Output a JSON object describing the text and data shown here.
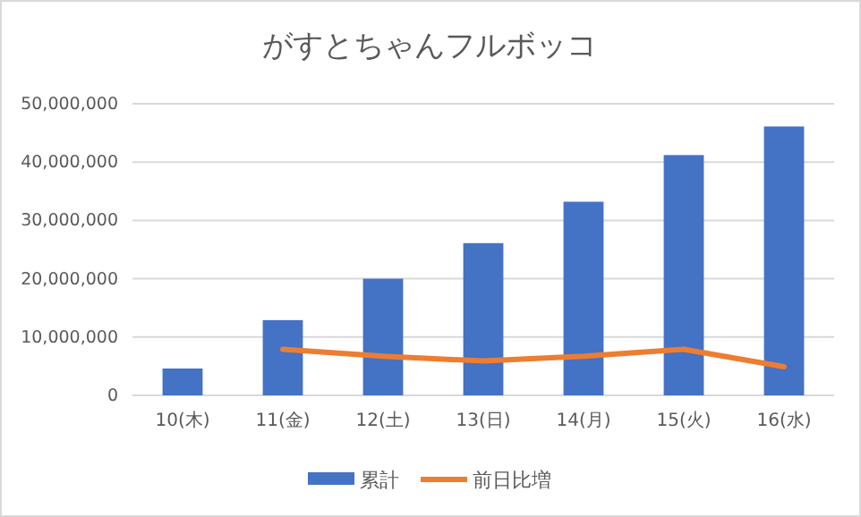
{
  "chart_data": {
    "type": "bar",
    "title": "がすとちゃんフルボッコ",
    "categories": [
      "10(木)",
      "11(金)",
      "12(土)",
      "13(日)",
      "14(月)",
      "15(火)",
      "16(水)"
    ],
    "series": [
      {
        "name": "累計",
        "color": "#4472c4",
        "values": [
          4600000,
          12900000,
          20000000,
          26100000,
          33200000,
          41200000,
          46100000
        ]
      },
      {
        "name": "前日比増",
        "type": "line",
        "color": "#ed7d31",
        "values": [
          null,
          7900000,
          6700000,
          5900000,
          6700000,
          7900000,
          4900000
        ]
      }
    ],
    "ylim": [
      0,
      50000000
    ],
    "yticks": [
      {
        "value": 0,
        "label": "0"
      },
      {
        "value": 10000000,
        "label": "10,000,000"
      },
      {
        "value": 20000000,
        "label": "20,000,000"
      },
      {
        "value": 30000000,
        "label": "30,000,000"
      },
      {
        "value": 40000000,
        "label": "40,000,000"
      },
      {
        "value": 50000000,
        "label": "50,000,000"
      }
    ],
    "grid": "y",
    "legend": "bottom",
    "marker": "none",
    "line_style": "solid"
  }
}
